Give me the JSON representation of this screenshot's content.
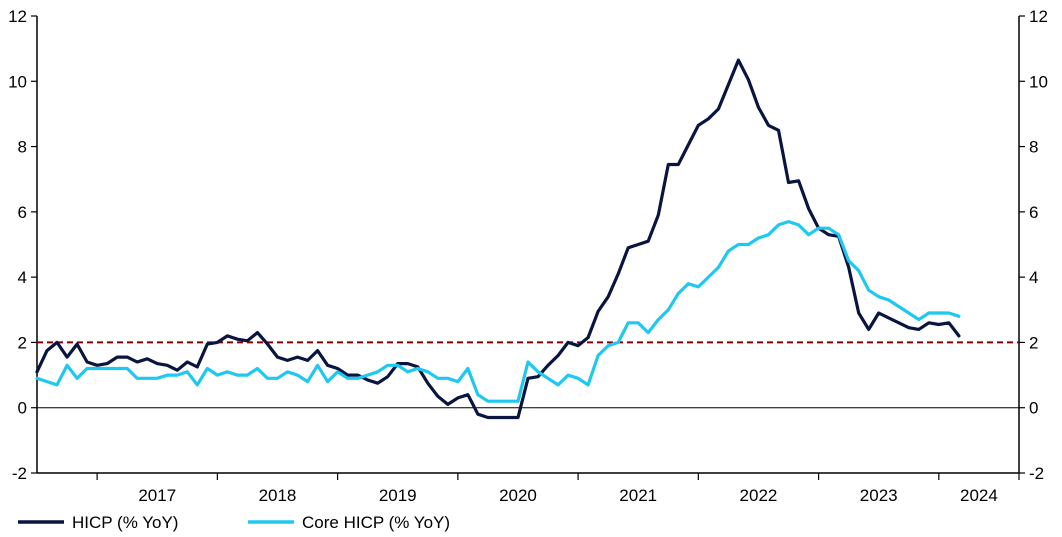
{
  "chart_data": {
    "type": "line",
    "title": "",
    "xlabel": "",
    "ylabel": "",
    "ylim": [
      -2,
      12
    ],
    "y_ticks": [
      "-2",
      "0",
      "2",
      "4",
      "6",
      "8",
      "10",
      "12"
    ],
    "x_tick_labels": [
      "2017",
      "2018",
      "2019",
      "2020",
      "2021",
      "2022",
      "2023",
      "2024"
    ],
    "x_range": [
      "2016-07",
      "2024-09"
    ],
    "reference_line": {
      "y": 2,
      "style": "dashed",
      "color": "#8B0000"
    },
    "zero_line": true,
    "legend_position": "bottom-left",
    "colors": {
      "hicp": "#0a1440",
      "core": "#1ec8f0"
    },
    "series": [
      {
        "name": "HICP (% YoY)",
        "color": "#0a1440",
        "start": "2016-07",
        "values": [
          1.1,
          1.75,
          2.0,
          1.55,
          1.95,
          1.4,
          1.3,
          1.35,
          1.55,
          1.55,
          1.4,
          1.5,
          1.35,
          1.3,
          1.15,
          1.4,
          1.25,
          1.95,
          2.0,
          2.2,
          2.1,
          2.05,
          2.3,
          1.95,
          1.55,
          1.45,
          1.55,
          1.45,
          1.75,
          1.3,
          1.2,
          1.0,
          1.0,
          0.85,
          0.75,
          0.95,
          1.35,
          1.35,
          1.25,
          0.75,
          0.35,
          0.1,
          0.3,
          0.4,
          -0.2,
          -0.3,
          -0.3,
          -0.3,
          -0.3,
          0.9,
          0.95,
          1.3,
          1.6,
          2.0,
          1.9,
          2.15,
          2.95,
          3.4,
          4.1,
          4.9,
          5.0,
          5.1,
          5.9,
          7.45,
          7.45,
          8.05,
          8.65,
          8.85,
          9.15,
          9.9,
          10.65,
          10.05,
          9.2,
          8.65,
          8.5,
          6.9,
          6.95,
          6.1,
          5.5,
          5.3,
          5.25,
          4.3,
          2.9,
          2.4,
          2.9,
          2.75,
          2.6,
          2.45,
          2.4,
          2.6,
          2.55,
          2.6,
          2.2
        ]
      },
      {
        "name": "Core HICP (% YoY)",
        "color": "#1ec8f0",
        "start": "2016-07",
        "values": [
          0.9,
          0.8,
          0.7,
          1.3,
          0.9,
          1.2,
          1.2,
          1.2,
          1.2,
          1.2,
          0.9,
          0.9,
          0.9,
          1.0,
          1.0,
          1.1,
          0.7,
          1.2,
          1.0,
          1.1,
          1.0,
          1.0,
          1.2,
          0.9,
          0.9,
          1.1,
          1.0,
          0.8,
          1.3,
          0.8,
          1.1,
          0.9,
          0.9,
          1.0,
          1.1,
          1.3,
          1.3,
          1.1,
          1.2,
          1.1,
          0.9,
          0.9,
          0.8,
          1.2,
          0.4,
          0.2,
          0.2,
          0.2,
          0.2,
          1.4,
          1.1,
          0.9,
          0.7,
          1.0,
          0.9,
          0.7,
          1.6,
          1.9,
          2.0,
          2.6,
          2.6,
          2.3,
          2.7,
          3.0,
          3.5,
          3.8,
          3.7,
          4.0,
          4.3,
          4.8,
          5.0,
          5.0,
          5.2,
          5.3,
          5.6,
          5.7,
          5.6,
          5.3,
          5.5,
          5.5,
          5.3,
          4.5,
          4.2,
          3.6,
          3.4,
          3.3,
          3.1,
          2.9,
          2.7,
          2.9,
          2.9,
          2.9,
          2.8
        ]
      }
    ]
  }
}
